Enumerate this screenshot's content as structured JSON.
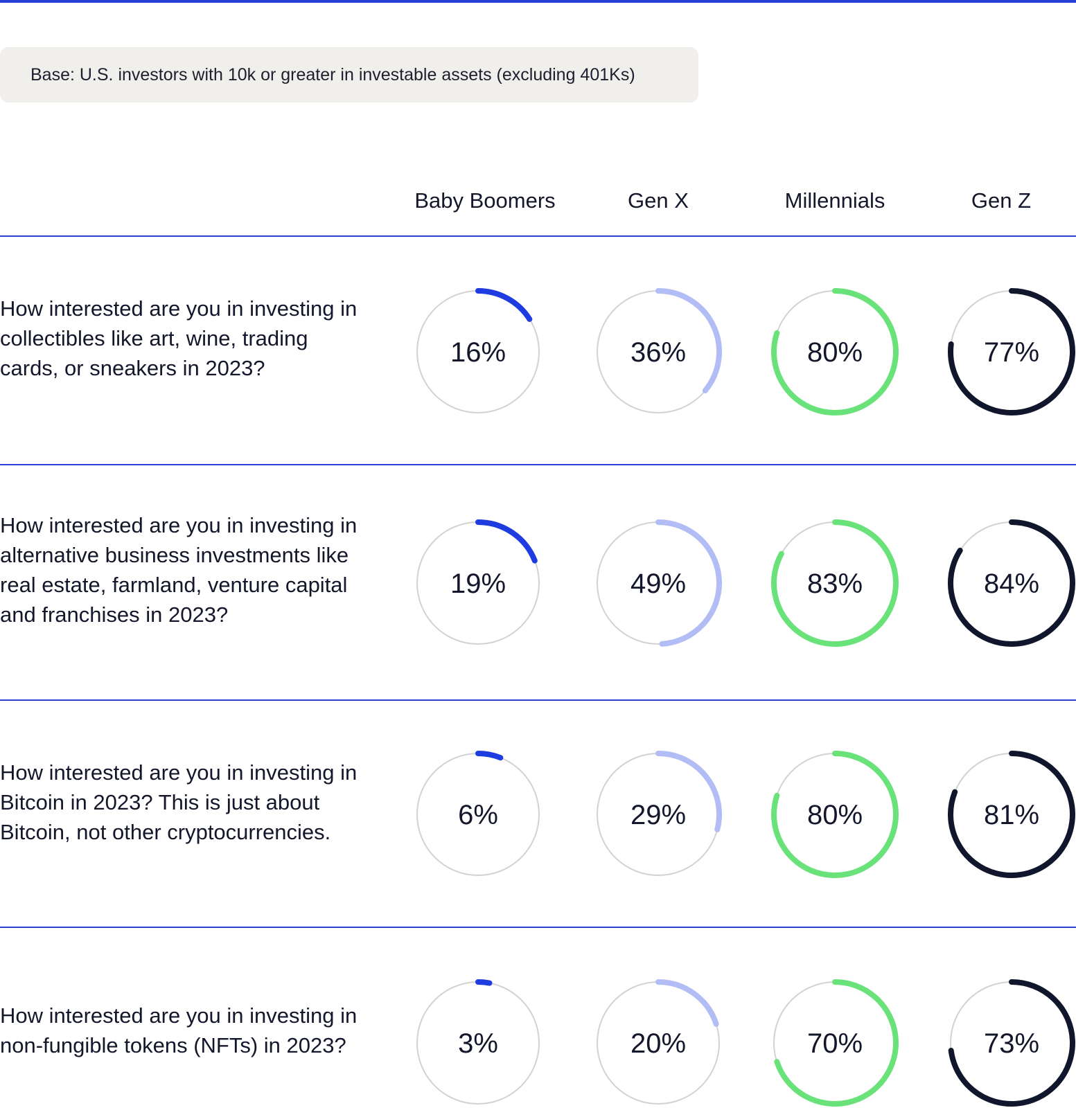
{
  "base_note": "Base: U.S. investors with 10k or greater in investable assets (excluding 401Ks)",
  "colors": {
    "rule": "#2a3fd6",
    "track": "#d2d2d2",
    "baby_boomers": "#1f3ce0",
    "gen_x": "#b3bdf5",
    "millennials": "#6ae27a",
    "gen_z": "#10162b"
  },
  "chart_data": {
    "type": "donut-grid",
    "categories": [
      "Baby Boomers",
      "Gen X",
      "Millennials",
      "Gen Z"
    ],
    "rows": [
      {
        "question": "How interested are you in investing in collectibles like art, wine, trading cards, or sneakers in 2023?",
        "values": [
          16,
          36,
          80,
          77
        ],
        "labels": [
          "16%",
          "36%",
          "80%",
          "77%"
        ]
      },
      {
        "question": "How interested are you in investing in alternative business investments like real estate, farmland, venture capital and franchises in 2023?",
        "values": [
          19,
          49,
          83,
          84
        ],
        "labels": [
          "19%",
          "49%",
          "83%",
          "84%"
        ]
      },
      {
        "question": "How interested are you in investing in Bitcoin in 2023? This is just about Bitcoin, not other cryptocurrencies.",
        "values": [
          6,
          29,
          80,
          81
        ],
        "labels": [
          "6%",
          "29%",
          "80%",
          "81%"
        ]
      },
      {
        "question": "How interested are you in investing in non-fungible tokens (NFTs) in 2023?",
        "values": [
          3,
          20,
          70,
          73
        ],
        "labels": [
          "3%",
          "20%",
          "70%",
          "73%"
        ]
      }
    ]
  }
}
